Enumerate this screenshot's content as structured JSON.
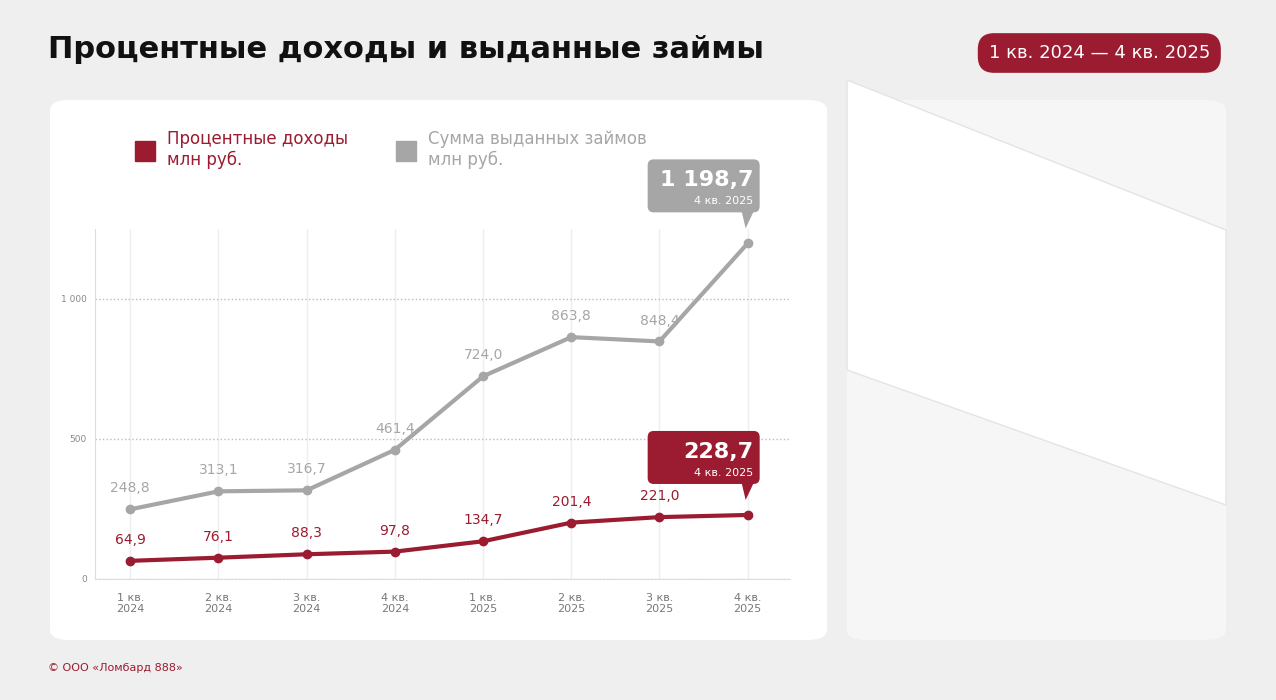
{
  "chart_data": {
    "type": "line",
    "title": "Процентные доходы и выданные займы",
    "subtitle": "1 кв. 2024 — 4 кв. 2025",
    "source": "© ООО «Ломбард 888»",
    "categories": [
      "1 кв.\n2024",
      "2 кв.\n2024",
      "3 кв.\n2024",
      "4 кв.\n2024",
      "1 кв.\n2025",
      "2 кв.\n2025",
      "3 кв.\n2025",
      "4 кв.\n2025"
    ],
    "series": [
      {
        "name": "Процентные доходы\nмлн руб.",
        "color": "#9B1B30",
        "marker": "o",
        "values": [
          64.9,
          76.1,
          88.3,
          97.8,
          134.7,
          201.4,
          221.0,
          228.7
        ],
        "value_labels": [
          "64,9",
          "76,1",
          "88,3",
          "97,8",
          "134,7",
          "201,4",
          "221,0",
          "228,7"
        ],
        "callout": "4 кв. 2025"
      },
      {
        "name": "Сумма выданных займов\nмлн руб.",
        "color": "#A6A6A6",
        "marker": "o",
        "values": [
          248.8,
          313.1,
          316.7,
          461.4,
          724.0,
          863.8,
          848.4,
          1198.7
        ],
        "value_labels": [
          "248,8",
          "313,1",
          "316,7",
          "461,4",
          "724,0",
          "863,8",
          "848,4",
          "1 198,7"
        ],
        "callout": "4 кв. 2025"
      }
    ],
    "ylim": [
      0,
      1250
    ],
    "yticks": [
      0,
      500,
      {
        "value": 1000,
        "label": "1 000"
      }
    ],
    "grid": true,
    "legend": "upper left",
    "data_labels": true
  }
}
